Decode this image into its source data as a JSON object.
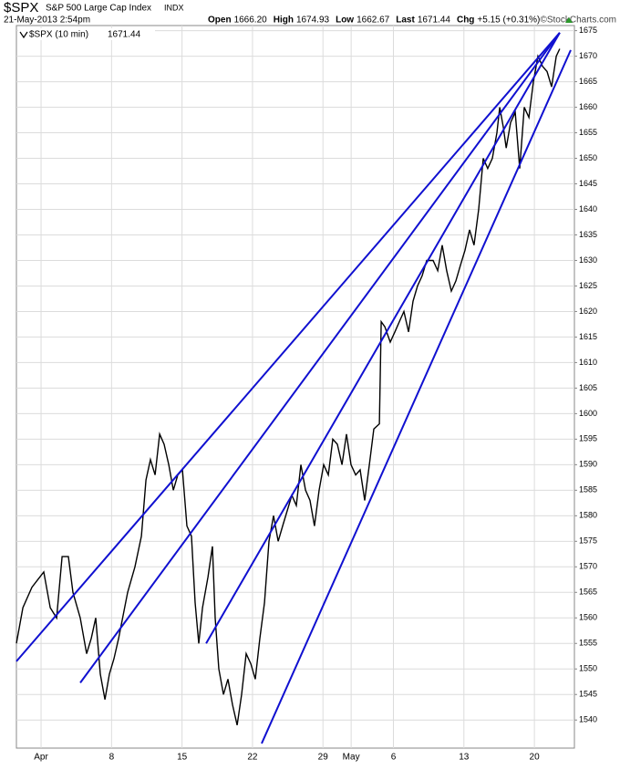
{
  "chart_data": {
    "type": "line",
    "title": "$SPX",
    "subtitle": "S&P 500 Large Cap Index",
    "exchange": "INDX",
    "timestamp": "21-May-2013 2:54pm",
    "quote": [
      {
        "label": "Open",
        "value": "1666.20"
      },
      {
        "label": "High",
        "value": "1674.93"
      },
      {
        "label": "Low",
        "value": "1662.67"
      },
      {
        "label": "Last",
        "value": "1671.44"
      },
      {
        "label": "Chg",
        "value": "+5.15 (+0.31%)"
      }
    ],
    "source": "©StockCharts.com",
    "legend_value": "1671.44",
    "x": [
      -1.75,
      -1.29,
      -0.65,
      0.19,
      0.65,
      1.1,
      1.49,
      1.94,
      2.26,
      2.78,
      3.23,
      3.56,
      3.88,
      4.2,
      4.53,
      4.85,
      5.17,
      5.5,
      6.14,
      6.66,
      7.12,
      7.44,
      7.76,
      8.09,
      8.41,
      8.73,
      9.06,
      9.38,
      9.7,
      10.03,
      10.35,
      10.67,
      10.93,
      11.19,
      11.45,
      11.84,
      12.16,
      12.35,
      12.61,
      12.94,
      13.26,
      13.58,
      13.91,
      14.23,
      14.55,
      14.88,
      15.2,
      15.52,
      15.85,
      16.17,
      16.49,
      16.82,
      17.14,
      17.79,
      18.11,
      18.43,
      18.76,
      19.08,
      19.4,
      19.73,
      20.05,
      20.38,
      20.7,
      21.02,
      21.35,
      21.67,
      21.99,
      22.32,
      22.64,
      22.96,
      23.29,
      23.61,
      24.0,
      24.13,
      24.39,
      24.77,
      25.1,
      25.42,
      25.74,
      26.07,
      26.39,
      26.71,
      27.04,
      27.36,
      27.81,
      28.14,
      28.46,
      28.78,
      29.11,
      29.43,
      29.75,
      30.08,
      30.4,
      30.72,
      31.05,
      31.37,
      31.69,
      32.02,
      32.34,
      32.54,
      32.8,
      33.0,
      33.31,
      33.64,
      33.96,
      34.28,
      34.61,
      34.93,
      35.25,
      35.58,
      35.9,
      36.22,
      36.55,
      36.8
    ],
    "series": [
      {
        "name": "$SPX (10 min)",
        "color": "#000000",
        "values": [
          1555,
          1562,
          1566,
          1569,
          1562,
          1560,
          1572,
          1572,
          1565,
          1560,
          1553,
          1556,
          1560,
          1549,
          1544,
          1549,
          1552,
          1556,
          1565,
          1570,
          1576,
          1587,
          1591,
          1588,
          1596,
          1594,
          1590,
          1585,
          1588,
          1589,
          1578,
          1576,
          1563,
          1555,
          1562,
          1568,
          1574,
          1560,
          1550,
          1545,
          1548,
          1543,
          1539,
          1545,
          1553,
          1551,
          1548,
          1556,
          1563,
          1575,
          1580,
          1575,
          1578,
          1584,
          1582,
          1590,
          1585,
          1583,
          1578,
          1585,
          1590,
          1588,
          1595,
          1594,
          1590,
          1596,
          1590,
          1588,
          1589,
          1583,
          1590,
          1597,
          1598,
          1618,
          1617,
          1614,
          1616,
          1618,
          1620,
          1616,
          1622,
          1625,
          1627,
          1630,
          1630,
          1628,
          1633,
          1628,
          1624,
          1626,
          1629,
          1632,
          1636,
          1633,
          1640,
          1650,
          1648,
          1650,
          1655,
          1660,
          1656,
          1652,
          1657,
          1659,
          1648,
          1660,
          1658,
          1665,
          1670,
          1668,
          1667,
          1664,
          1670,
          1671.44
        ]
      }
    ],
    "trendline_color": "#1010d0",
    "trendlines": [
      {
        "x": [
          -1.75,
          36.8
        ],
        "values": [
          1551.5,
          1674.6
        ]
      },
      {
        "x": [
          2.78,
          36.8
        ],
        "values": [
          1547.3,
          1674.6
        ]
      },
      {
        "x": [
          11.71,
          36.8
        ],
        "values": [
          1555.0,
          1674.6
        ]
      },
      {
        "x": [
          15.65,
          37.58
        ],
        "values": [
          1535.4,
          1671.2
        ]
      }
    ],
    "xlim": [
      -1.75,
      37.84
    ],
    "ylim": [
      1534.5,
      1676
    ],
    "xticks": [
      {
        "value": 0,
        "label": "Apr"
      },
      {
        "value": 5,
        "label": "8"
      },
      {
        "value": 10,
        "label": "15"
      },
      {
        "value": 15,
        "label": "22"
      },
      {
        "value": 20,
        "label": "29"
      },
      {
        "value": 22,
        "label": "May"
      },
      {
        "value": 25,
        "label": "6"
      },
      {
        "value": 30,
        "label": "13"
      },
      {
        "value": 35,
        "label": "20"
      }
    ],
    "yticks": [
      1540,
      1545,
      1550,
      1555,
      1560,
      1565,
      1570,
      1575,
      1580,
      1585,
      1590,
      1595,
      1600,
      1605,
      1610,
      1615,
      1620,
      1625,
      1630,
      1635,
      1640,
      1645,
      1650,
      1655,
      1660,
      1665,
      1670,
      1675
    ],
    "grid": true
  }
}
